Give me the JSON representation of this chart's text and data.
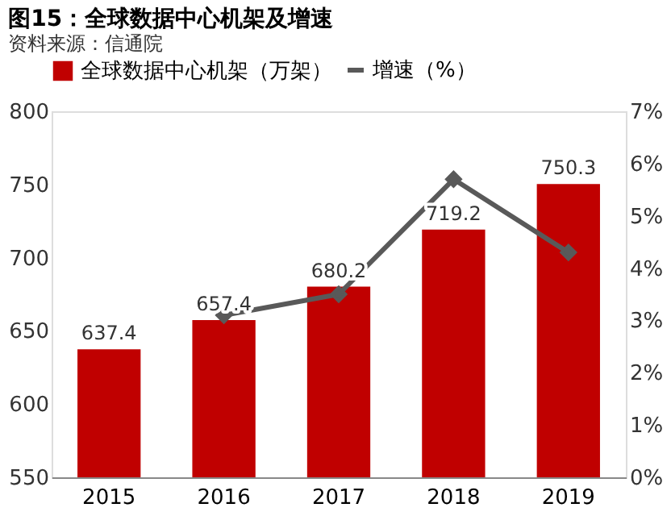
{
  "chart_data": {
    "type": "bar",
    "title": "图15：全球数据中心机架及增速",
    "categories": [
      "2015",
      "2016",
      "2017",
      "2018",
      "2019"
    ],
    "series": [
      {
        "name": "全球数据中心机架（万架）",
        "color": "#c00000",
        "values": [
          637.4,
          657.4,
          680.2,
          719.2,
          750.3
        ],
        "value_labels": [
          "637.4",
          "657.4",
          "680.2",
          "719.2",
          "750.3"
        ]
      },
      {
        "name": "增速（%）",
        "type": "line",
        "axis": "y2",
        "color": "#595959",
        "marker": "diamond",
        "values": [
          null,
          3.1,
          3.5,
          5.7,
          4.3
        ]
      }
    ],
    "ylim": [
      550,
      800
    ],
    "yticks": [
      550,
      600,
      650,
      700,
      750,
      800
    ],
    "y2lim": [
      0,
      7
    ],
    "y2ticks": [
      {
        "value": 0,
        "label": "0%"
      },
      {
        "value": 1,
        "label": "1%"
      },
      {
        "value": 2,
        "label": "2%"
      },
      {
        "value": 3,
        "label": "3%"
      },
      {
        "value": 4,
        "label": "4%"
      },
      {
        "value": 5,
        "label": "5%"
      },
      {
        "value": 6,
        "label": "6%"
      },
      {
        "value": 7,
        "label": "7%"
      }
    ],
    "legend": "top",
    "grid": false,
    "annotations": [
      "资料来源：信通院"
    ]
  }
}
